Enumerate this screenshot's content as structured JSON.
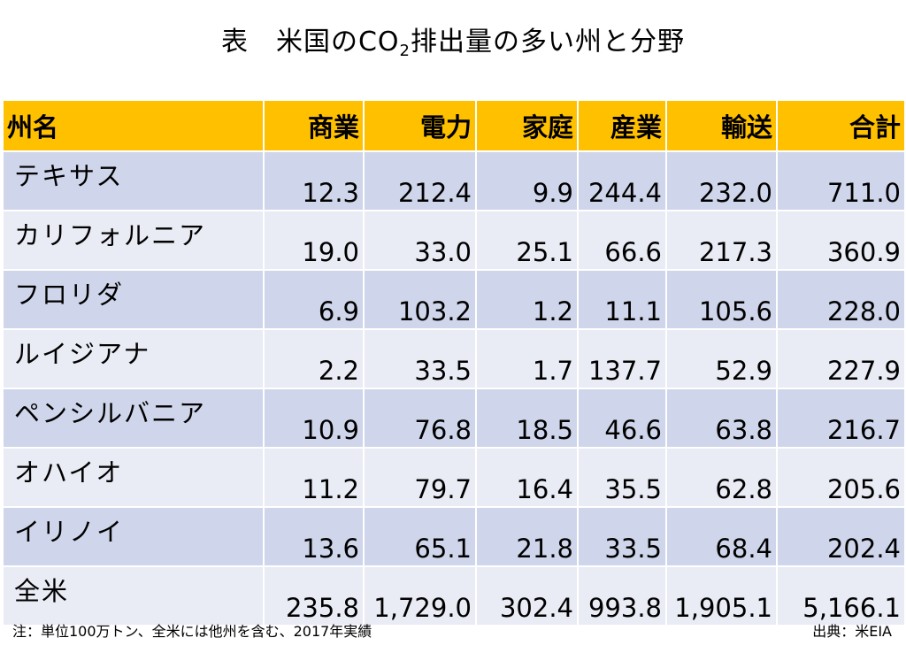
{
  "title": {
    "main": "表　米国のCO",
    "sub": "2",
    "rest": "排出量の多い州と分野"
  },
  "table": {
    "header": [
      "州名",
      "商業",
      "電力",
      "家庭",
      "産業",
      "輸送",
      "合計"
    ],
    "rows": [
      [
        "テキサス",
        "12.3",
        "212.4",
        "9.9",
        "244.4",
        "232.0",
        "711.0"
      ],
      [
        "カリフォルニア",
        "19.0",
        "33.0",
        "25.1",
        "66.6",
        "217.3",
        "360.9"
      ],
      [
        "フロリダ",
        "6.9",
        "103.2",
        "1.2",
        "11.1",
        "105.6",
        "228.0"
      ],
      [
        "ルイジアナ",
        "2.2",
        "33.5",
        "1.7",
        "137.7",
        "52.9",
        "227.9"
      ],
      [
        "ペンシルバニア",
        "10.9",
        "76.8",
        "18.5",
        "46.6",
        "63.8",
        "216.7"
      ],
      [
        "オハイオ",
        "11.2",
        "79.7",
        "16.4",
        "35.5",
        "62.8",
        "205.6"
      ],
      [
        "イリノイ",
        "13.6",
        "65.1",
        "21.8",
        "33.5",
        "68.4",
        "202.4"
      ],
      [
        "全米",
        "235.8",
        "1,729.0",
        "302.4",
        "993.8",
        "1,905.1",
        "5,166.1"
      ]
    ]
  },
  "footer": {
    "note": "注：単位100万トン、全米には他州を含む、2017年実績",
    "source": "出典：米EIA"
  }
}
